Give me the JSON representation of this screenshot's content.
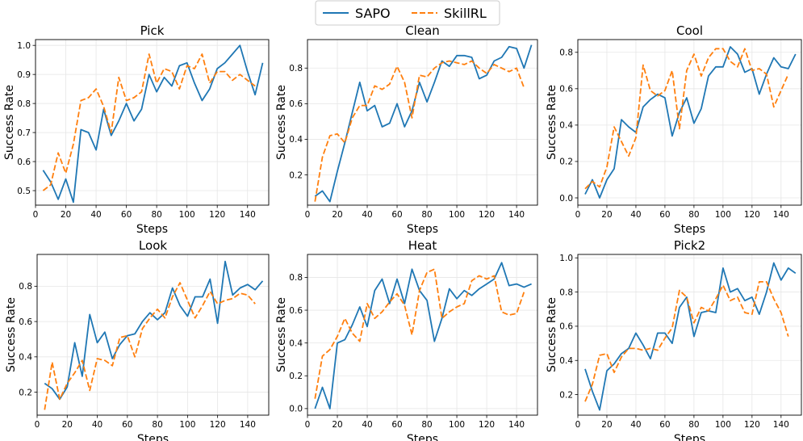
{
  "legend": {
    "placement": "top-center",
    "items": [
      {
        "label": "SAPO",
        "color": "#1f77b4",
        "style": "solid"
      },
      {
        "label": "SkillRL",
        "color": "#ff7f0e",
        "style": "dashed"
      }
    ]
  },
  "chart_data": [
    {
      "type": "line",
      "title": "Pick",
      "xlabel": "Steps",
      "ylabel": "Success Rate",
      "xlim": [
        0,
        154
      ],
      "ylim": [
        0.45,
        1.02
      ],
      "grid": true,
      "xticks": [
        0,
        20,
        40,
        60,
        80,
        100,
        120,
        140
      ],
      "xtick_labels": [
        "0",
        "20",
        "40",
        "60",
        "80",
        "100",
        "120",
        "140"
      ],
      "yticks": [
        0.5,
        0.6,
        0.7,
        0.8,
        0.9,
        1.0
      ],
      "ytick_labels": [
        "0.5",
        "0.6",
        "0.7",
        "0.8",
        "0.9",
        "1.0"
      ],
      "series": [
        {
          "name": "SAPO",
          "x": [
            5,
            10,
            15,
            20,
            25,
            30,
            35,
            40,
            45,
            50,
            55,
            60,
            65,
            70,
            75,
            80,
            85,
            90,
            95,
            100,
            105,
            110,
            115,
            120,
            125,
            130,
            135,
            140,
            145,
            150
          ],
          "values": [
            0.57,
            0.53,
            0.47,
            0.54,
            0.46,
            0.71,
            0.7,
            0.64,
            0.78,
            0.69,
            0.74,
            0.8,
            0.74,
            0.78,
            0.9,
            0.84,
            0.89,
            0.86,
            0.93,
            0.94,
            0.87,
            0.81,
            0.85,
            0.92,
            0.94,
            0.97,
            1.0,
            0.91,
            0.83,
            0.94
          ]
        },
        {
          "name": "SkillRL",
          "x": [
            5,
            10,
            15,
            20,
            25,
            30,
            35,
            40,
            45,
            50,
            55,
            60,
            65,
            70,
            75,
            80,
            85,
            90,
            95,
            100,
            105,
            110,
            115,
            120,
            125,
            130,
            135,
            140,
            145
          ],
          "values": [
            0.5,
            0.52,
            0.63,
            0.56,
            0.66,
            0.81,
            0.82,
            0.85,
            0.79,
            0.7,
            0.89,
            0.81,
            0.82,
            0.84,
            0.97,
            0.87,
            0.92,
            0.91,
            0.85,
            0.93,
            0.92,
            0.97,
            0.87,
            0.91,
            0.91,
            0.88,
            0.9,
            0.88,
            0.86
          ]
        }
      ]
    },
    {
      "type": "line",
      "title": "Clean",
      "xlabel": "Steps",
      "ylabel": "Success Rate",
      "xlim": [
        0,
        154
      ],
      "ylim": [
        0.03,
        0.96
      ],
      "grid": true,
      "xticks": [
        0,
        20,
        40,
        60,
        80,
        100,
        120,
        140
      ],
      "xtick_labels": [
        "0",
        "20",
        "40",
        "60",
        "80",
        "100",
        "120",
        "140"
      ],
      "yticks": [
        0.2,
        0.4,
        0.6,
        0.8
      ],
      "ytick_labels": [
        "0.2",
        "0.4",
        "0.6",
        "0.8"
      ],
      "series": [
        {
          "name": "SAPO",
          "x": [
            5,
            10,
            15,
            20,
            25,
            30,
            35,
            40,
            45,
            50,
            55,
            60,
            65,
            70,
            75,
            80,
            85,
            90,
            95,
            100,
            105,
            110,
            115,
            120,
            125,
            130,
            135,
            140,
            145,
            150
          ],
          "values": [
            0.08,
            0.11,
            0.05,
            0.22,
            0.38,
            0.55,
            0.72,
            0.56,
            0.59,
            0.47,
            0.49,
            0.6,
            0.47,
            0.56,
            0.72,
            0.61,
            0.72,
            0.84,
            0.81,
            0.87,
            0.87,
            0.86,
            0.74,
            0.76,
            0.84,
            0.86,
            0.92,
            0.91,
            0.8,
            0.93
          ]
        },
        {
          "name": "SkillRL",
          "x": [
            5,
            10,
            15,
            20,
            25,
            30,
            35,
            40,
            45,
            50,
            55,
            60,
            65,
            70,
            75,
            80,
            85,
            90,
            95,
            100,
            105,
            110,
            115,
            120,
            125,
            130,
            135,
            140,
            145
          ],
          "values": [
            0.05,
            0.3,
            0.42,
            0.43,
            0.38,
            0.52,
            0.59,
            0.59,
            0.7,
            0.68,
            0.71,
            0.81,
            0.72,
            0.52,
            0.76,
            0.75,
            0.8,
            0.83,
            0.84,
            0.83,
            0.82,
            0.84,
            0.8,
            0.77,
            0.82,
            0.8,
            0.78,
            0.8,
            0.69
          ]
        }
      ]
    },
    {
      "type": "line",
      "title": "Cool",
      "xlabel": "Steps",
      "ylabel": "Success Rate",
      "xlim": [
        0,
        154
      ],
      "ylim": [
        -0.04,
        0.87
      ],
      "grid": true,
      "xticks": [
        0,
        20,
        40,
        60,
        80,
        100,
        120,
        140
      ],
      "xtick_labels": [
        "0",
        "20",
        "40",
        "60",
        "80",
        "100",
        "120",
        "140"
      ],
      "yticks": [
        0.0,
        0.2,
        0.4,
        0.6,
        0.8
      ],
      "ytick_labels": [
        "0.0",
        "0.2",
        "0.4",
        "0.6",
        "0.8"
      ],
      "series": [
        {
          "name": "SAPO",
          "x": [
            5,
            10,
            15,
            20,
            25,
            30,
            35,
            40,
            45,
            50,
            55,
            60,
            65,
            70,
            75,
            80,
            85,
            90,
            95,
            100,
            105,
            110,
            115,
            120,
            125,
            130,
            135,
            140,
            145,
            150
          ],
          "values": [
            0.02,
            0.1,
            0.0,
            0.1,
            0.16,
            0.43,
            0.39,
            0.36,
            0.5,
            0.54,
            0.57,
            0.55,
            0.34,
            0.47,
            0.55,
            0.41,
            0.49,
            0.67,
            0.72,
            0.72,
            0.83,
            0.79,
            0.69,
            0.71,
            0.57,
            0.68,
            0.77,
            0.72,
            0.71,
            0.79
          ]
        },
        {
          "name": "SkillRL",
          "x": [
            5,
            10,
            15,
            20,
            25,
            30,
            35,
            40,
            45,
            50,
            55,
            60,
            65,
            70,
            75,
            80,
            85,
            90,
            95,
            100,
            105,
            110,
            115,
            120,
            125,
            130,
            135,
            140,
            145
          ],
          "values": [
            0.05,
            0.09,
            0.06,
            0.17,
            0.39,
            0.31,
            0.23,
            0.33,
            0.73,
            0.59,
            0.56,
            0.59,
            0.7,
            0.38,
            0.7,
            0.79,
            0.67,
            0.77,
            0.82,
            0.82,
            0.75,
            0.72,
            0.82,
            0.7,
            0.71,
            0.68,
            0.5,
            0.59,
            0.68
          ]
        }
      ]
    },
    {
      "type": "line",
      "title": "Look",
      "xlabel": "Steps",
      "ylabel": "Success Rate",
      "xlim": [
        0,
        154
      ],
      "ylim": [
        0.07,
        0.98
      ],
      "grid": true,
      "xticks": [
        0,
        20,
        40,
        60,
        80,
        100,
        120,
        140
      ],
      "xtick_labels": [
        "0",
        "20",
        "40",
        "60",
        "80",
        "100",
        "120",
        "140"
      ],
      "yticks": [
        0.2,
        0.4,
        0.6,
        0.8
      ],
      "ytick_labels": [
        "0.2",
        "0.4",
        "0.6",
        "0.8"
      ],
      "series": [
        {
          "name": "SAPO",
          "x": [
            5,
            10,
            15,
            20,
            25,
            30,
            35,
            40,
            45,
            50,
            55,
            60,
            65,
            70,
            75,
            80,
            85,
            90,
            95,
            100,
            105,
            110,
            115,
            120,
            125,
            130,
            135,
            140,
            145,
            150
          ],
          "values": [
            0.25,
            0.22,
            0.16,
            0.23,
            0.48,
            0.29,
            0.64,
            0.48,
            0.54,
            0.39,
            0.47,
            0.52,
            0.53,
            0.6,
            0.65,
            0.61,
            0.65,
            0.79,
            0.69,
            0.63,
            0.74,
            0.74,
            0.84,
            0.59,
            0.94,
            0.75,
            0.79,
            0.81,
            0.78,
            0.83
          ]
        },
        {
          "name": "SkillRL",
          "x": [
            5,
            10,
            15,
            20,
            25,
            30,
            35,
            40,
            45,
            50,
            55,
            60,
            65,
            70,
            75,
            80,
            85,
            90,
            95,
            100,
            105,
            110,
            115,
            120,
            125,
            130,
            135,
            140,
            145
          ],
          "values": [
            0.1,
            0.37,
            0.16,
            0.25,
            0.31,
            0.38,
            0.21,
            0.39,
            0.38,
            0.35,
            0.51,
            0.52,
            0.4,
            0.56,
            0.62,
            0.67,
            0.62,
            0.74,
            0.82,
            0.72,
            0.62,
            0.69,
            0.77,
            0.7,
            0.72,
            0.73,
            0.76,
            0.75,
            0.7
          ]
        }
      ]
    },
    {
      "type": "line",
      "title": "Heat",
      "xlabel": "Steps",
      "ylabel": "Success Rate",
      "xlim": [
        0,
        154
      ],
      "ylim": [
        -0.04,
        0.94
      ],
      "grid": true,
      "xticks": [
        0,
        20,
        40,
        60,
        80,
        100,
        120,
        140
      ],
      "xtick_labels": [
        "0",
        "20",
        "40",
        "60",
        "80",
        "100",
        "120",
        "140"
      ],
      "yticks": [
        0.0,
        0.2,
        0.4,
        0.6,
        0.8
      ],
      "ytick_labels": [
        "0.0",
        "0.2",
        "0.4",
        "0.6",
        "0.8"
      ],
      "series": [
        {
          "name": "SAPO",
          "x": [
            5,
            10,
            15,
            20,
            25,
            30,
            35,
            40,
            45,
            50,
            55,
            60,
            65,
            70,
            75,
            80,
            85,
            90,
            95,
            100,
            105,
            110,
            115,
            120,
            125,
            130,
            135,
            140,
            145,
            150
          ],
          "values": [
            0.0,
            0.13,
            0.0,
            0.4,
            0.42,
            0.51,
            0.62,
            0.5,
            0.72,
            0.79,
            0.64,
            0.79,
            0.64,
            0.85,
            0.72,
            0.66,
            0.41,
            0.55,
            0.73,
            0.67,
            0.72,
            0.69,
            0.73,
            0.76,
            0.79,
            0.89,
            0.75,
            0.76,
            0.74,
            0.76
          ]
        },
        {
          "name": "SkillRL",
          "x": [
            5,
            10,
            15,
            20,
            25,
            30,
            35,
            40,
            45,
            50,
            55,
            60,
            65,
            70,
            75,
            80,
            85,
            90,
            95,
            100,
            105,
            110,
            115,
            120,
            125,
            130,
            135,
            140,
            145
          ],
          "values": [
            0.06,
            0.32,
            0.36,
            0.44,
            0.55,
            0.46,
            0.41,
            0.64,
            0.55,
            0.59,
            0.65,
            0.7,
            0.63,
            0.45,
            0.72,
            0.83,
            0.85,
            0.55,
            0.59,
            0.62,
            0.64,
            0.78,
            0.81,
            0.79,
            0.81,
            0.59,
            0.57,
            0.58,
            0.71
          ]
        }
      ]
    },
    {
      "type": "line",
      "title": "Pick2",
      "xlabel": "Steps",
      "ylabel": "Success Rate",
      "xlim": [
        0,
        154
      ],
      "ylim": [
        0.08,
        1.02
      ],
      "grid": true,
      "xticks": [
        0,
        20,
        40,
        60,
        80,
        100,
        120,
        140
      ],
      "xtick_labels": [
        "0",
        "20",
        "40",
        "60",
        "80",
        "100",
        "120",
        "140"
      ],
      "yticks": [
        0.2,
        0.4,
        0.6,
        0.8,
        1.0
      ],
      "ytick_labels": [
        "0.2",
        "0.4",
        "0.6",
        "0.8",
        "1.0"
      ],
      "series": [
        {
          "name": "SAPO",
          "x": [
            5,
            10,
            15,
            20,
            25,
            30,
            35,
            40,
            45,
            50,
            55,
            60,
            65,
            70,
            75,
            80,
            85,
            90,
            95,
            100,
            105,
            110,
            115,
            120,
            125,
            130,
            135,
            140,
            145,
            150
          ],
          "values": [
            0.35,
            0.22,
            0.11,
            0.34,
            0.38,
            0.44,
            0.47,
            0.56,
            0.49,
            0.41,
            0.56,
            0.56,
            0.5,
            0.71,
            0.77,
            0.54,
            0.68,
            0.69,
            0.68,
            0.94,
            0.8,
            0.82,
            0.75,
            0.77,
            0.67,
            0.8,
            0.97,
            0.87,
            0.94,
            0.91
          ]
        },
        {
          "name": "SkillRL",
          "x": [
            5,
            10,
            15,
            20,
            25,
            30,
            35,
            40,
            45,
            50,
            55,
            60,
            65,
            70,
            75,
            80,
            85,
            90,
            95,
            100,
            105,
            110,
            115,
            120,
            125,
            130,
            135,
            140,
            145
          ],
          "values": [
            0.16,
            0.26,
            0.43,
            0.44,
            0.33,
            0.42,
            0.47,
            0.47,
            0.46,
            0.47,
            0.46,
            0.53,
            0.59,
            0.81,
            0.77,
            0.62,
            0.71,
            0.69,
            0.76,
            0.84,
            0.75,
            0.77,
            0.68,
            0.67,
            0.86,
            0.86,
            0.76,
            0.68,
            0.54
          ]
        }
      ]
    }
  ]
}
